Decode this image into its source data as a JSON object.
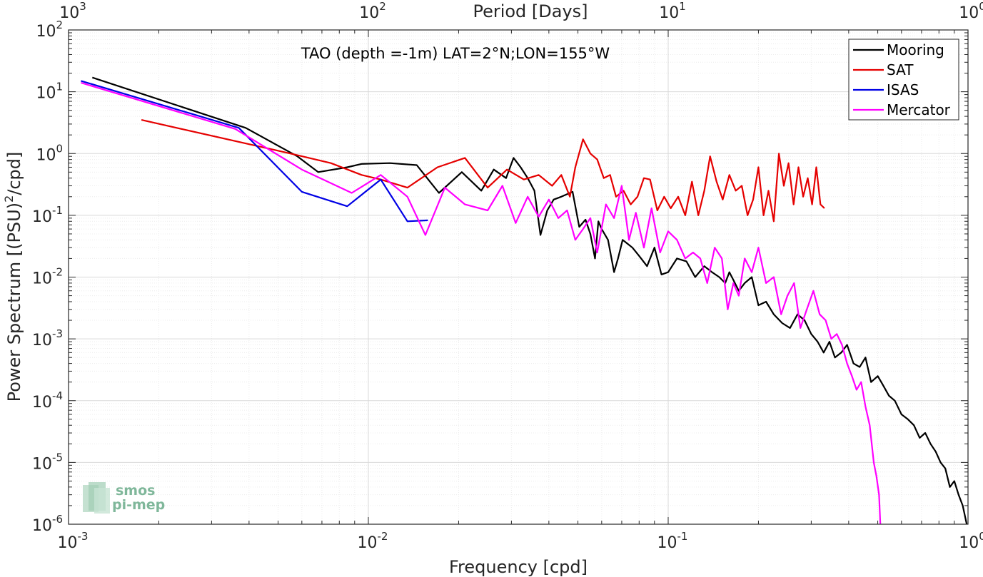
{
  "chart_data": {
    "type": "line",
    "title": "TAO (depth =-1m) LAT=2°N;LON=155°W",
    "xlabel": "Frequency [cpd]",
    "ylabel": "Power Spectrum [(PSU)",
    "ylabel_sup": "2",
    "ylabel_tail": "/cpd]",
    "x2label": "Period [Days]",
    "x_scale": "log",
    "y_scale": "log",
    "xlim": [
      0.001,
      1
    ],
    "ylim": [
      1e-06,
      100
    ],
    "grid": true,
    "legend_position": "top-right",
    "x_ticks": [
      {
        "base": "10",
        "exp": "-3"
      },
      {
        "base": "10",
        "exp": "-2"
      },
      {
        "base": "10",
        "exp": "-1"
      },
      {
        "base": "10",
        "exp": "0"
      }
    ],
    "x2_ticks": [
      {
        "base": "10",
        "exp": "3"
      },
      {
        "base": "10",
        "exp": "2"
      },
      {
        "base": "10",
        "exp": "1"
      },
      {
        "base": "10",
        "exp": "0"
      }
    ],
    "y_ticks": [
      {
        "base": "10",
        "exp": "-6"
      },
      {
        "base": "10",
        "exp": "-5"
      },
      {
        "base": "10",
        "exp": "-4"
      },
      {
        "base": "10",
        "exp": "-3"
      },
      {
        "base": "10",
        "exp": "-2"
      },
      {
        "base": "10",
        "exp": "-1"
      },
      {
        "base": "10",
        "exp": "0"
      },
      {
        "base": "10",
        "exp": "1"
      },
      {
        "base": "10",
        "exp": "2"
      }
    ],
    "series": [
      {
        "name": "Mooring",
        "color": "#000000",
        "x": [
          0.0012,
          0.0039,
          0.0058,
          0.0068,
          0.0085,
          0.0095,
          0.0118,
          0.0145,
          0.0172,
          0.0205,
          0.0238,
          0.0262,
          0.0288,
          0.0305,
          0.0322,
          0.034,
          0.0358,
          0.0375,
          0.0395,
          0.0415,
          0.044,
          0.046,
          0.048,
          0.0505,
          0.053,
          0.055,
          0.057,
          0.0585,
          0.06,
          0.063,
          0.066,
          0.068,
          0.0705,
          0.073,
          0.076,
          0.08,
          0.085,
          0.09,
          0.095,
          0.1,
          0.107,
          0.115,
          0.123,
          0.132,
          0.14,
          0.148,
          0.155,
          0.16,
          0.165,
          0.172,
          0.18,
          0.19,
          0.2,
          0.212,
          0.225,
          0.24,
          0.255,
          0.27,
          0.285,
          0.3,
          0.315,
          0.33,
          0.345,
          0.36,
          0.378,
          0.395,
          0.415,
          0.435,
          0.455,
          0.475,
          0.5,
          0.52,
          0.545,
          0.57,
          0.6,
          0.63,
          0.66,
          0.69,
          0.72,
          0.75,
          0.78,
          0.81,
          0.84,
          0.87,
          0.9,
          0.93,
          0.96,
          0.99
        ],
        "y": [
          17,
          2.6,
          0.9,
          0.5,
          0.6,
          0.68,
          0.7,
          0.65,
          0.23,
          0.5,
          0.25,
          0.55,
          0.4,
          0.85,
          0.6,
          0.4,
          0.25,
          0.048,
          0.12,
          0.18,
          0.2,
          0.22,
          0.24,
          0.065,
          0.085,
          0.05,
          0.02,
          0.08,
          0.06,
          0.04,
          0.012,
          0.02,
          0.04,
          0.035,
          0.03,
          0.022,
          0.015,
          0.03,
          0.011,
          0.012,
          0.02,
          0.018,
          0.01,
          0.015,
          0.012,
          0.01,
          0.008,
          0.012,
          0.009,
          0.006,
          0.008,
          0.01,
          0.0035,
          0.004,
          0.0025,
          0.0018,
          0.0015,
          0.0025,
          0.002,
          0.0012,
          0.0009,
          0.0006,
          0.0009,
          0.0005,
          0.0006,
          0.0008,
          0.0004,
          0.00035,
          0.0005,
          0.0002,
          0.00025,
          0.00018,
          0.00012,
          0.0001,
          6e-05,
          5e-05,
          4e-05,
          2.5e-05,
          3e-05,
          2e-05,
          1.5e-05,
          1e-05,
          8e-06,
          4e-06,
          5e-06,
          3e-06,
          2e-06,
          1e-06
        ]
      },
      {
        "name": "SAT",
        "color": "#e50000",
        "x": [
          0.00175,
          0.0055,
          0.0075,
          0.0095,
          0.011,
          0.0135,
          0.017,
          0.021,
          0.025,
          0.029,
          0.033,
          0.037,
          0.041,
          0.044,
          0.047,
          0.049,
          0.052,
          0.055,
          0.058,
          0.061,
          0.064,
          0.067,
          0.071,
          0.075,
          0.079,
          0.083,
          0.087,
          0.092,
          0.097,
          0.102,
          0.108,
          0.114,
          0.12,
          0.126,
          0.132,
          0.138,
          0.145,
          0.152,
          0.16,
          0.168,
          0.176,
          0.184,
          0.192,
          0.2,
          0.208,
          0.216,
          0.225,
          0.234,
          0.243,
          0.252,
          0.262,
          0.272,
          0.282,
          0.292,
          0.302,
          0.312,
          0.322,
          0.332
        ],
        "y": [
          3.5,
          1.0,
          0.7,
          0.45,
          0.38,
          0.28,
          0.6,
          0.85,
          0.28,
          0.55,
          0.38,
          0.45,
          0.3,
          0.45,
          0.2,
          0.6,
          1.7,
          1.0,
          0.8,
          0.4,
          0.45,
          0.2,
          0.25,
          0.15,
          0.2,
          0.4,
          0.38,
          0.12,
          0.2,
          0.13,
          0.2,
          0.1,
          0.35,
          0.1,
          0.25,
          0.9,
          0.35,
          0.18,
          0.45,
          0.25,
          0.3,
          0.1,
          0.18,
          0.6,
          0.1,
          0.25,
          0.08,
          1.0,
          0.3,
          0.7,
          0.15,
          0.6,
          0.2,
          0.4,
          0.15,
          0.6,
          0.15,
          0.13
        ]
      },
      {
        "name": "ISAS",
        "color": "#0000e5",
        "x": [
          0.0011,
          0.0037,
          0.006,
          0.0085,
          0.011,
          0.0135,
          0.0158
        ],
        "y": [
          15,
          2.6,
          0.24,
          0.14,
          0.38,
          0.08,
          0.083
        ]
      },
      {
        "name": "Mercator",
        "color": "#ff00ff",
        "x": [
          0.0011,
          0.0036,
          0.006,
          0.0088,
          0.011,
          0.0135,
          0.0155,
          0.018,
          0.021,
          0.025,
          0.028,
          0.031,
          0.034,
          0.037,
          0.04,
          0.043,
          0.046,
          0.049,
          0.052,
          0.055,
          0.058,
          0.062,
          0.066,
          0.07,
          0.074,
          0.078,
          0.083,
          0.088,
          0.094,
          0.1,
          0.107,
          0.114,
          0.121,
          0.128,
          0.135,
          0.143,
          0.151,
          0.158,
          0.165,
          0.172,
          0.18,
          0.19,
          0.2,
          0.212,
          0.225,
          0.238,
          0.25,
          0.263,
          0.276,
          0.29,
          0.305,
          0.32,
          0.335,
          0.35,
          0.365,
          0.38,
          0.395,
          0.41,
          0.425,
          0.44,
          0.455,
          0.47,
          0.485,
          0.495,
          0.505,
          0.51
        ],
        "y": [
          14,
          2.5,
          0.55,
          0.23,
          0.45,
          0.2,
          0.048,
          0.28,
          0.15,
          0.12,
          0.3,
          0.075,
          0.2,
          0.095,
          0.18,
          0.09,
          0.12,
          0.04,
          0.06,
          0.09,
          0.025,
          0.15,
          0.09,
          0.3,
          0.04,
          0.11,
          0.03,
          0.13,
          0.025,
          0.055,
          0.04,
          0.02,
          0.025,
          0.02,
          0.008,
          0.03,
          0.02,
          0.003,
          0.008,
          0.005,
          0.02,
          0.012,
          0.03,
          0.008,
          0.01,
          0.0025,
          0.005,
          0.008,
          0.0015,
          0.003,
          0.006,
          0.0025,
          0.002,
          0.001,
          0.0012,
          0.0008,
          0.0004,
          0.00025,
          0.00015,
          0.0002,
          8e-05,
          4e-05,
          1e-05,
          6e-06,
          3e-06,
          1e-06
        ]
      }
    ]
  },
  "logo": {
    "line1": "smos",
    "line2": "pi-mep"
  }
}
